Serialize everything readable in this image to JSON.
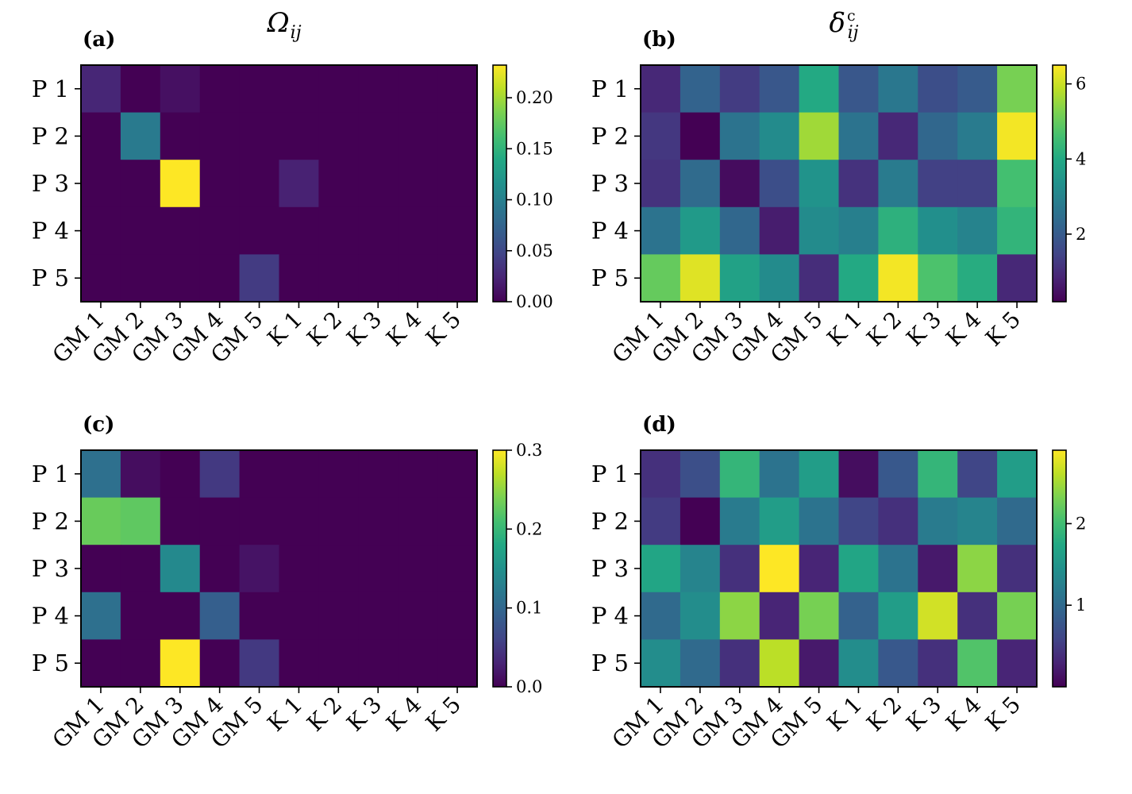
{
  "chart_data": [
    {
      "type": "heatmap",
      "panel": "(a)",
      "title": "Ω",
      "title_subscript": "ij",
      "title_superscript": "",
      "colormap": "viridis",
      "rows": [
        "P 1",
        "P 2",
        "P 3",
        "P 4",
        "P 5"
      ],
      "columns": [
        "GM 1",
        "GM 2",
        "GM 3",
        "GM 4",
        "GM 5",
        "K 1",
        "K 2",
        "K 3",
        "K 4",
        "K 5"
      ],
      "values": [
        [
          0.025,
          0.0,
          0.01,
          0.0,
          0.0,
          0.0,
          0.0,
          0.0,
          0.0,
          0.0
        ],
        [
          0.0,
          0.095,
          0.0,
          0.0,
          0.0,
          0.0,
          0.0,
          0.0,
          0.0,
          0.0
        ],
        [
          0.0,
          0.0,
          0.232,
          0.0,
          0.0,
          0.022,
          0.0,
          0.0,
          0.0,
          0.0
        ],
        [
          0.0,
          0.0,
          0.0,
          0.0,
          0.0,
          0.0,
          0.0,
          0.0,
          0.0,
          0.0
        ],
        [
          0.0,
          0.0,
          0.0,
          0.0,
          0.04,
          0.0,
          0.0,
          0.0,
          0.0,
          0.0
        ]
      ],
      "vmin": 0.0,
      "vmax": 0.232,
      "colorbar_ticks": [
        0.0,
        0.05,
        0.1,
        0.15,
        0.2
      ],
      "colorbar_tick_labels": [
        "0.00",
        "0.05",
        "0.10",
        "0.15",
        "0.20"
      ]
    },
    {
      "type": "heatmap",
      "panel": "(b)",
      "title": "δ",
      "title_subscript": "ij",
      "title_superscript": "c",
      "colormap": "viridis",
      "rows": [
        "P 1",
        "P 2",
        "P 3",
        "P 4",
        "P 5"
      ],
      "columns": [
        "GM 1",
        "GM 2",
        "GM 3",
        "GM 4",
        "GM 5",
        "K 1",
        "K 2",
        "K 3",
        "K 4",
        "K 5"
      ],
      "values": [
        [
          0.9,
          2.2,
          1.3,
          1.9,
          4.0,
          1.9,
          2.7,
          1.7,
          2.0,
          5.2
        ],
        [
          1.2,
          0.2,
          2.6,
          3.2,
          5.6,
          2.6,
          0.9,
          2.3,
          2.8,
          6.4
        ],
        [
          1.1,
          2.4,
          0.4,
          1.7,
          3.4,
          1.1,
          2.8,
          1.4,
          1.4,
          4.6
        ],
        [
          2.6,
          3.6,
          2.3,
          0.7,
          3.2,
          2.9,
          4.2,
          3.3,
          3.0,
          4.3
        ],
        [
          5.0,
          6.2,
          3.8,
          3.2,
          1.0,
          4.0,
          6.4,
          4.7,
          4.1,
          0.9
        ]
      ],
      "vmin": 0.2,
      "vmax": 6.5,
      "colorbar_ticks": [
        2,
        4,
        6
      ],
      "colorbar_tick_labels": [
        "2",
        "4",
        "6"
      ]
    },
    {
      "type": "heatmap",
      "panel": "(c)",
      "title": "",
      "title_subscript": "",
      "title_superscript": "",
      "colormap": "viridis",
      "rows": [
        "P 1",
        "P 2",
        "P 3",
        "P 4",
        "P 5"
      ],
      "columns": [
        "GM 1",
        "GM 2",
        "GM 3",
        "GM 4",
        "GM 5",
        "K 1",
        "K 2",
        "K 3",
        "K 4",
        "K 5"
      ],
      "values": [
        [
          0.11,
          0.01,
          0.0,
          0.05,
          0.0,
          0.0,
          0.0,
          0.0,
          0.0,
          0.0
        ],
        [
          0.23,
          0.225,
          0.0,
          0.0,
          0.0,
          0.0,
          0.0,
          0.0,
          0.0,
          0.0
        ],
        [
          0.0,
          0.0,
          0.14,
          0.0,
          0.015,
          0.0,
          0.0,
          0.0,
          0.0,
          0.0
        ],
        [
          0.11,
          0.0,
          0.0,
          0.09,
          0.0,
          0.0,
          0.0,
          0.0,
          0.0,
          0.0
        ],
        [
          0.0,
          0.0,
          0.3,
          0.0,
          0.05,
          0.0,
          0.0,
          0.0,
          0.0,
          0.0
        ]
      ],
      "vmin": 0.0,
      "vmax": 0.3,
      "colorbar_ticks": [
        0.0,
        0.1,
        0.2,
        0.3
      ],
      "colorbar_tick_labels": [
        "0.0",
        "0.1",
        "0.2",
        "0.3"
      ]
    },
    {
      "type": "heatmap",
      "panel": "(d)",
      "title": "",
      "title_subscript": "",
      "title_superscript": "",
      "colormap": "viridis",
      "rows": [
        "P 1",
        "P 2",
        "P 3",
        "P 4",
        "P 5"
      ],
      "columns": [
        "GM 1",
        "GM 2",
        "GM 3",
        "GM 4",
        "GM 5",
        "K 1",
        "K 2",
        "K 3",
        "K 4",
        "K 5"
      ],
      "values": [
        [
          0.4,
          0.7,
          1.9,
          1.1,
          1.6,
          0.1,
          0.8,
          1.9,
          0.6,
          1.6
        ],
        [
          0.5,
          0.0,
          1.2,
          1.6,
          1.1,
          0.6,
          0.4,
          1.2,
          1.3,
          1.0
        ],
        [
          1.7,
          1.3,
          0.4,
          2.9,
          0.3,
          1.7,
          1.1,
          0.2,
          2.4,
          0.4
        ],
        [
          1.0,
          1.4,
          2.4,
          0.3,
          2.3,
          0.9,
          1.6,
          2.7,
          0.4,
          2.3
        ],
        [
          1.4,
          1.0,
          0.4,
          2.6,
          0.2,
          1.4,
          0.8,
          0.4,
          2.1,
          0.3
        ]
      ],
      "vmin": 0.0,
      "vmax": 2.9,
      "colorbar_ticks": [
        1,
        2
      ],
      "colorbar_tick_labels": [
        "1",
        "2"
      ]
    }
  ]
}
